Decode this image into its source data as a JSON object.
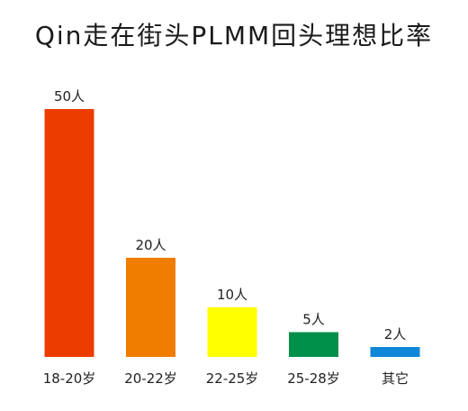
{
  "chart_data": {
    "type": "bar",
    "title": "Qin走在街头PLMM回头理想比率",
    "xlabel": "",
    "ylabel": "",
    "categories": [
      "18-20岁",
      "20-22岁",
      "22-25岁",
      "25-28岁",
      "其它"
    ],
    "values": [
      50,
      20,
      10,
      5,
      2
    ],
    "value_labels": [
      "50人",
      "20人",
      "10人",
      "5人",
      "2人"
    ],
    "colors": [
      "#ec3c00",
      "#f07c00",
      "#ffff00",
      "#00904a",
      "#0f86d8"
    ],
    "ylim": [
      0,
      50
    ],
    "grid": false,
    "legend": "none"
  }
}
